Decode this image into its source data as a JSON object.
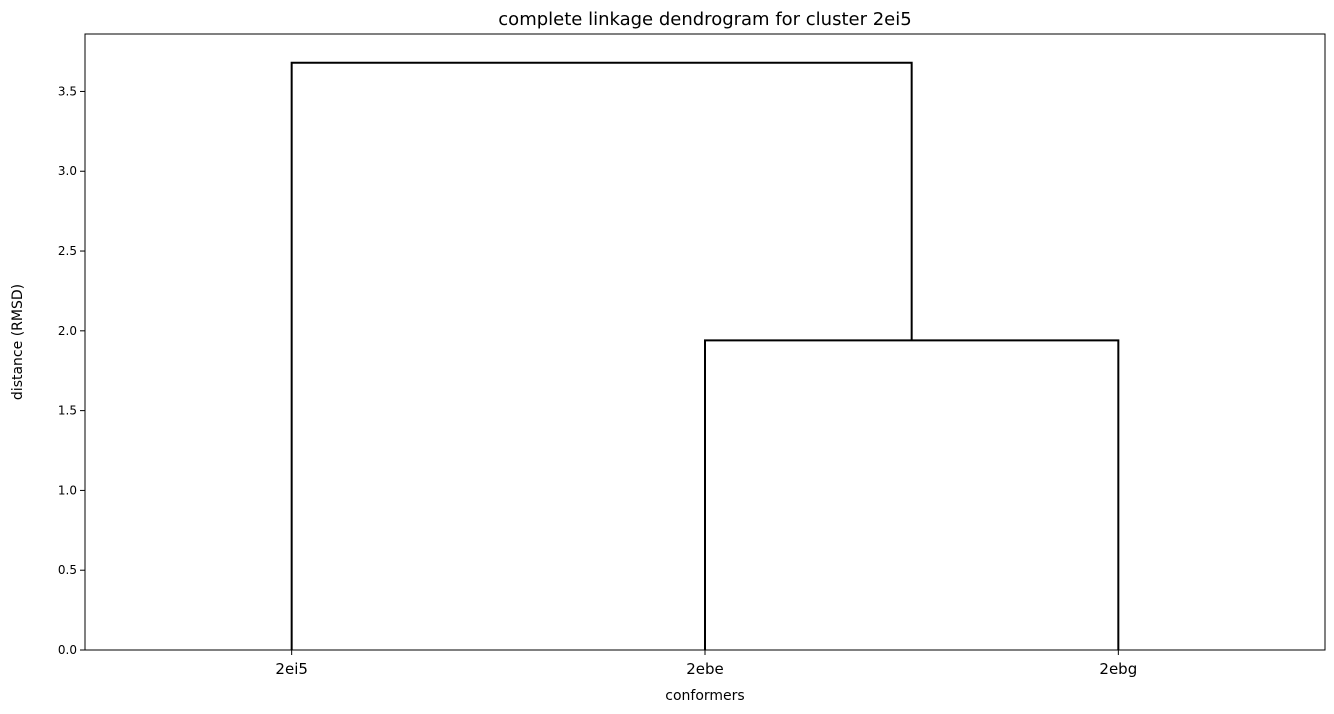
{
  "chart_data": {
    "type": "dendrogram",
    "title": "complete linkage dendrogram for cluster 2ei5",
    "xlabel": "conformers",
    "ylabel": "distance (RMSD)",
    "leaves": [
      "2ei5",
      "2ebe",
      "2ebg"
    ],
    "ylim": [
      0,
      3.86
    ],
    "yticks": [
      "0.0",
      "0.5",
      "1.0",
      "1.5",
      "2.0",
      "2.5",
      "3.0",
      "3.5"
    ],
    "merges": [
      {
        "members": [
          "2ebe",
          "2ebg"
        ],
        "height": 1.94
      },
      {
        "members": [
          "2ei5",
          "2ebe+2ebg"
        ],
        "height": 3.68
      }
    ],
    "line_color": "#000000",
    "grid": false,
    "legend": "none"
  }
}
